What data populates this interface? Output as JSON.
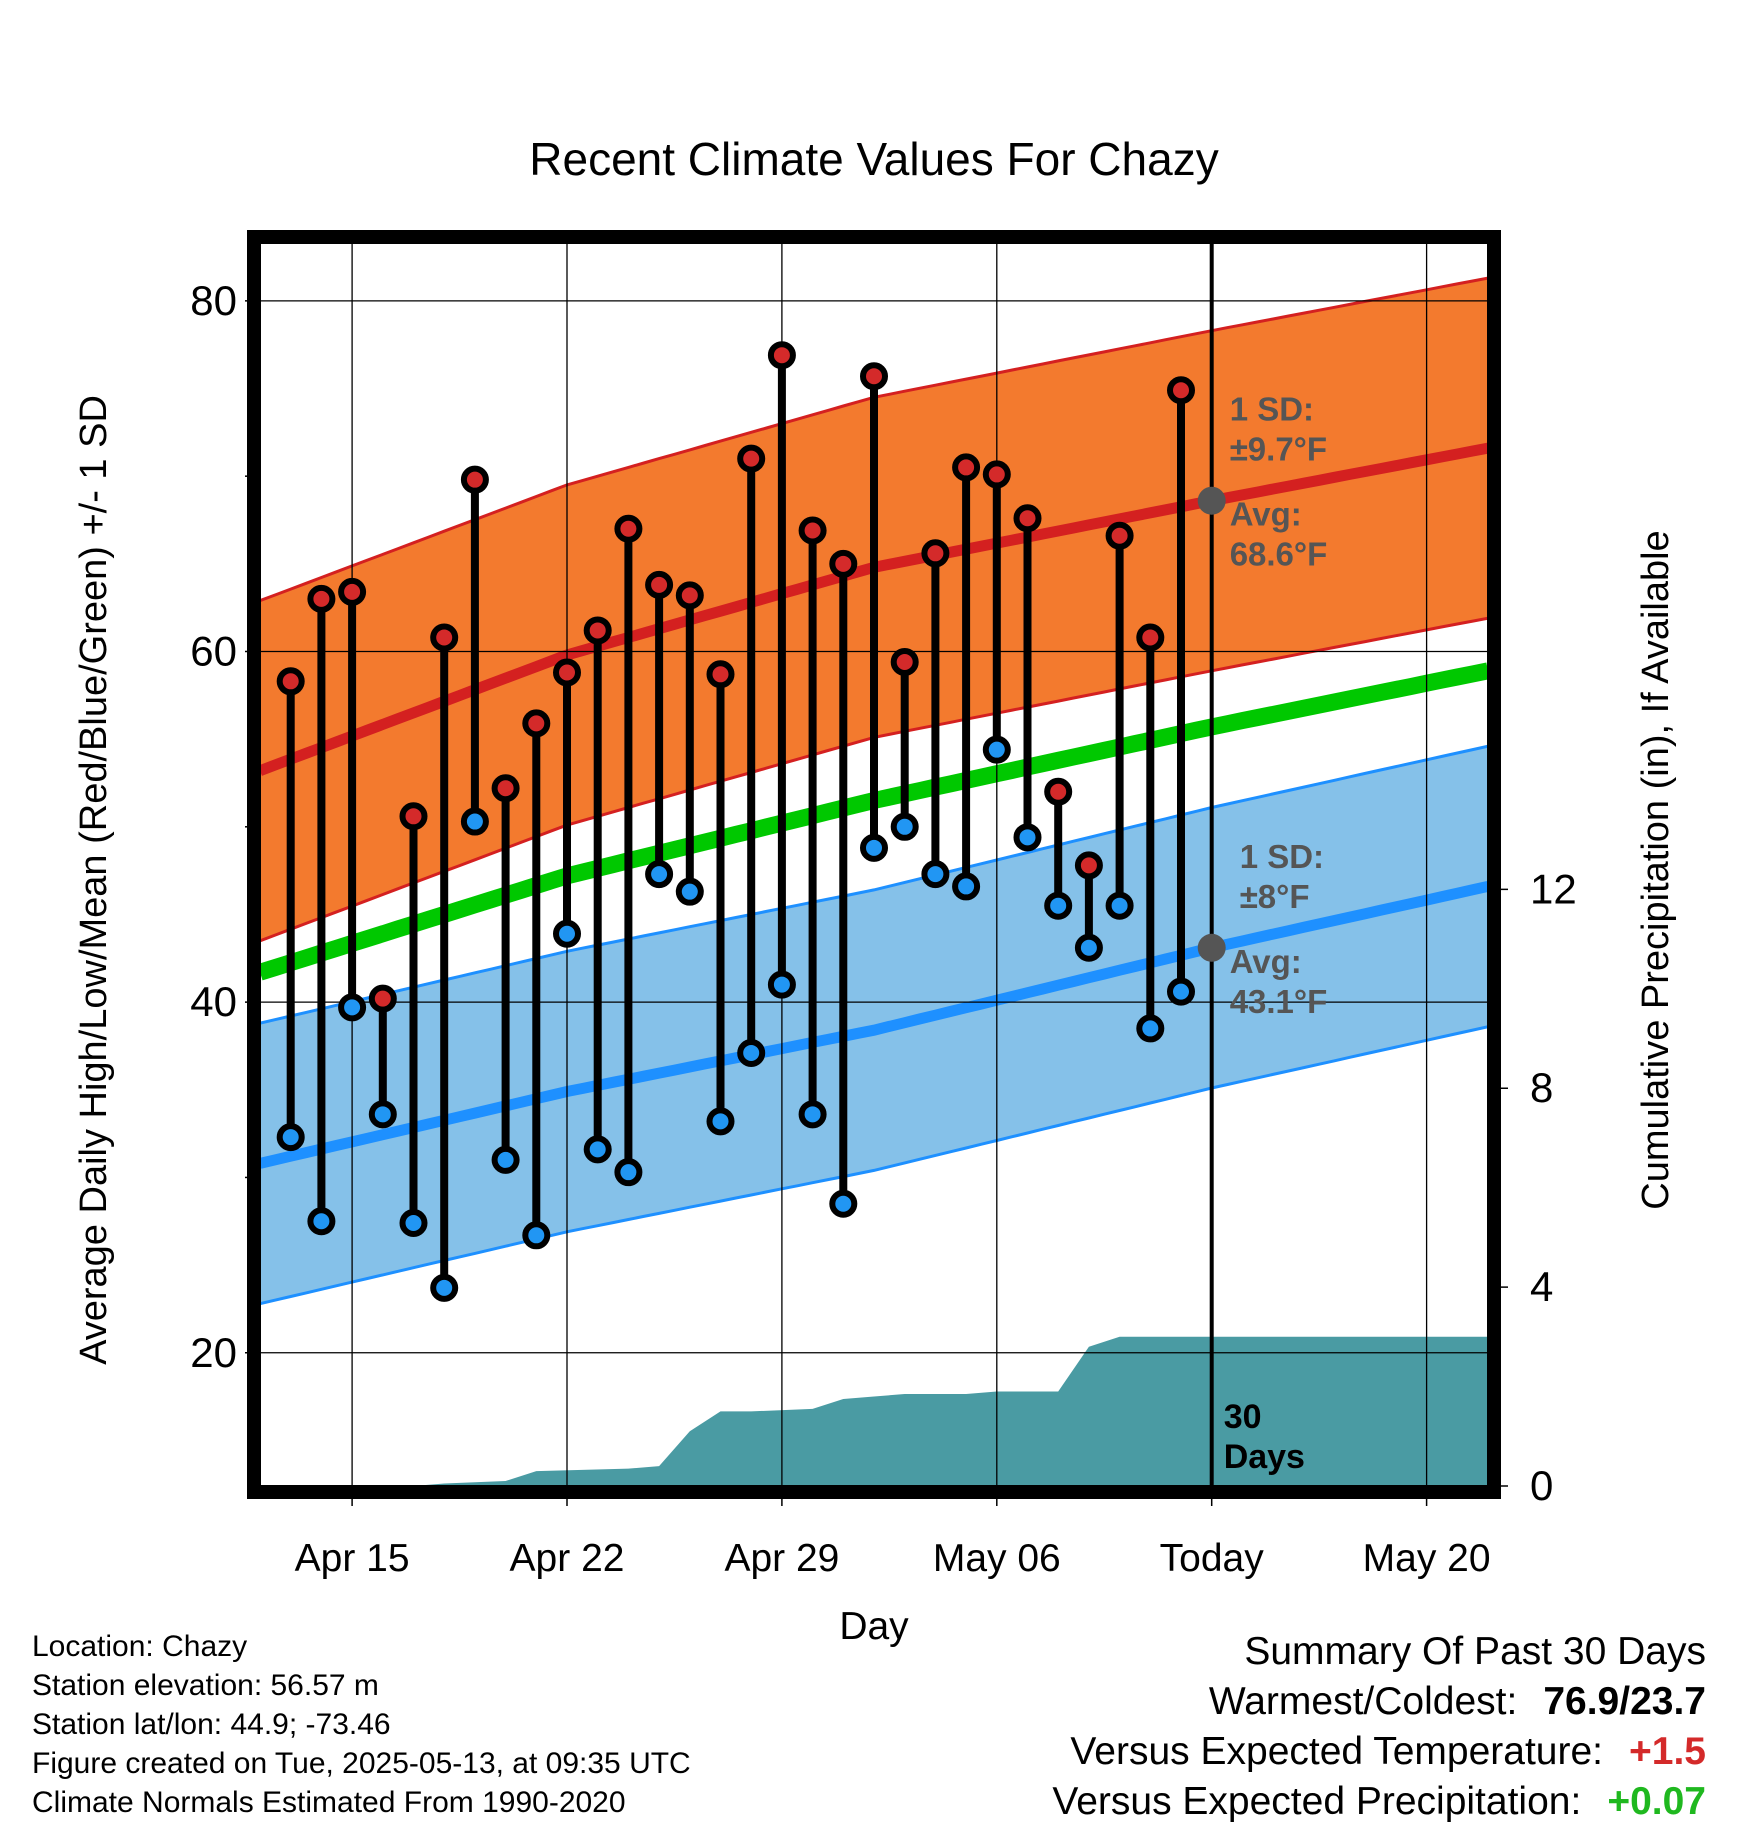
{
  "chart_data": {
    "type": "line",
    "title": "Recent Climate Values For Chazy",
    "xlabel": "Day",
    "ylabel": "Average Daily High/Low/Mean (Red/Blue/Green) +/- 1 SD",
    "y2label": "Cumulative Precipitation (in), If Available",
    "x_range": [
      "2025-04-12",
      "2025-05-22"
    ],
    "ylim": [
      12.4,
      83.3
    ],
    "y2lim": [
      0,
      25
    ],
    "yticks": [
      20,
      40,
      60,
      80
    ],
    "y2ticks": [
      0,
      4,
      8,
      12
    ],
    "xticks": [
      {
        "date": "2025-04-15",
        "label": "Apr 15"
      },
      {
        "date": "2025-04-22",
        "label": "Apr 22"
      },
      {
        "date": "2025-04-29",
        "label": "Apr 29"
      },
      {
        "date": "2025-05-06",
        "label": "May 06"
      },
      {
        "date": "2025-05-13",
        "label": "Today"
      },
      {
        "date": "2025-05-20",
        "label": "May 20"
      }
    ],
    "grid": true,
    "today": "2025-05-13",
    "today_label": "30 Days",
    "colors": {
      "high_band": "#f37a2e",
      "high_line": "#d42020",
      "low_band": "#85c1e9",
      "low_line": "#1e90ff",
      "mean_line": "#00c800",
      "precip": "#4a9ba3",
      "high_dot": "#d42a2a",
      "low_dot": "#2196f3",
      "annotation": "#555555"
    },
    "normal_high": {
      "x": [
        "2025-04-12",
        "2025-04-22",
        "2025-05-02",
        "2025-05-13",
        "2025-05-22"
      ],
      "values": [
        53.2,
        59.8,
        64.8,
        68.6,
        71.6
      ]
    },
    "normal_high_sd": 9.7,
    "normal_low": {
      "x": [
        "2025-04-12",
        "2025-04-22",
        "2025-05-02",
        "2025-05-13",
        "2025-05-22"
      ],
      "values": [
        30.8,
        34.9,
        38.4,
        43.1,
        46.6
      ]
    },
    "normal_low_sd": 8,
    "normal_mean": {
      "x": [
        "2025-04-12",
        "2025-04-22",
        "2025-05-02",
        "2025-05-13",
        "2025-05-22"
      ],
      "values": [
        41.7,
        47.2,
        51.5,
        55.7,
        58.9
      ]
    },
    "daily": {
      "x": [
        "2025-04-13",
        "2025-04-14",
        "2025-04-15",
        "2025-04-16",
        "2025-04-17",
        "2025-04-18",
        "2025-04-19",
        "2025-04-20",
        "2025-04-21",
        "2025-04-22",
        "2025-04-23",
        "2025-04-24",
        "2025-04-25",
        "2025-04-26",
        "2025-04-27",
        "2025-04-28",
        "2025-04-29",
        "2025-04-30",
        "2025-05-01",
        "2025-05-02",
        "2025-05-03",
        "2025-05-04",
        "2025-05-05",
        "2025-05-06",
        "2025-05-07",
        "2025-05-08",
        "2025-05-09",
        "2025-05-10",
        "2025-05-11",
        "2025-05-12"
      ],
      "high": [
        58.3,
        63.0,
        63.4,
        40.2,
        50.6,
        60.8,
        69.8,
        52.2,
        55.9,
        58.8,
        61.2,
        67.0,
        63.8,
        63.2,
        58.7,
        71.0,
        76.9,
        66.9,
        65.0,
        75.7,
        59.4,
        65.6,
        70.5,
        70.1,
        67.6,
        52.0,
        47.8,
        66.6,
        60.8,
        74.9
      ],
      "low": [
        32.3,
        27.5,
        39.7,
        33.6,
        27.4,
        23.7,
        50.3,
        31.0,
        26.7,
        43.9,
        31.6,
        30.3,
        47.3,
        46.3,
        33.2,
        37.1,
        41.0,
        33.6,
        28.5,
        48.8,
        50.0,
        47.3,
        46.6,
        54.4,
        49.4,
        45.5,
        43.1,
        45.5,
        38.5,
        40.6
      ]
    },
    "precip_cumulative": {
      "x": [
        "2025-04-12",
        "2025-04-17",
        "2025-04-18",
        "2025-04-20",
        "2025-04-21",
        "2025-04-24",
        "2025-04-25",
        "2025-04-26",
        "2025-04-27",
        "2025-04-28",
        "2025-04-30",
        "2025-05-01",
        "2025-05-02",
        "2025-05-03",
        "2025-05-04",
        "2025-05-05",
        "2025-05-06",
        "2025-05-07",
        "2025-05-08",
        "2025-05-09",
        "2025-05-10",
        "2025-05-11",
        "2025-05-22"
      ],
      "values": [
        0,
        0,
        0.05,
        0.1,
        0.3,
        0.35,
        0.4,
        1.1,
        1.5,
        1.5,
        1.55,
        1.75,
        1.8,
        1.85,
        1.85,
        1.85,
        1.9,
        1.9,
        1.9,
        2.8,
        3.0,
        3.0,
        3.0
      ]
    },
    "annotations": {
      "high_sd": "1 SD:",
      "high_sd_value": "±9.7°F",
      "high_avg": "Avg:",
      "high_avg_value": "68.6°F",
      "low_sd": "1 SD:",
      "low_sd_value": "±8°F",
      "low_avg": "Avg:",
      "low_avg_value": "43.1°F"
    }
  },
  "metadata": {
    "location": "Location: Chazy",
    "elevation": "Station elevation: 56.57 m",
    "latlon": "Station lat/lon: 44.9; -73.46",
    "created": "Figure created on Tue, 2025-05-13, at 09:35 UTC",
    "normals": "Climate Normals Estimated From 1990-2020"
  },
  "summary": {
    "title": "Summary Of Past 30 Days",
    "warmest_label": "Warmest/Coldest:",
    "warmest_value": "76.9/23.7",
    "temp_label": "Versus Expected Temperature:",
    "temp_value": "+1.5",
    "temp_color": "#d42a2a",
    "precip_label": "Versus Expected Precipitation:",
    "precip_value": "+0.07",
    "precip_color": "#1fb81f"
  }
}
